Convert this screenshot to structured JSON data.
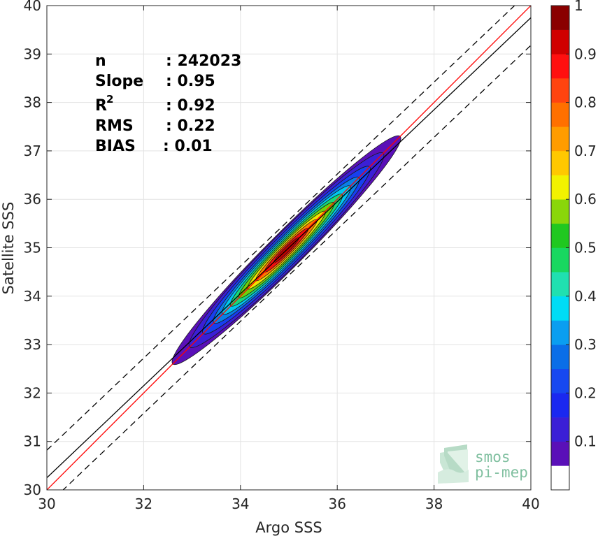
{
  "chart_data": {
    "type": "heatmap",
    "subtype": "density-contour",
    "xlabel": "Argo SSS",
    "ylabel": "Satellite SSS",
    "xlim": [
      30,
      40
    ],
    "ylim": [
      30,
      40
    ],
    "x_ticks": [
      30,
      32,
      34,
      36,
      38,
      40
    ],
    "y_ticks": [
      30,
      31,
      32,
      33,
      34,
      35,
      36,
      37,
      38,
      39,
      40
    ],
    "grid": true,
    "stats": [
      {
        "label": "n",
        "value": ": 242023"
      },
      {
        "label": "Slope",
        "value": ": 0.95"
      },
      {
        "label": "R",
        "sup": "2",
        "value": ": 0.92"
      },
      {
        "label": "RMS",
        "value": ": 0.22"
      },
      {
        "label": "BIAS",
        "value": ": 0.01"
      }
    ],
    "density_center": {
      "x": 34.95,
      "y": 34.95
    },
    "contours": [
      {
        "level": 0.05,
        "half_length": 2.35,
        "half_width": 0.36,
        "color": "#5a10b8"
      },
      {
        "level": 0.1,
        "half_length": 2.0,
        "half_width": 0.34,
        "color": "#3b1fd6"
      },
      {
        "level": 0.2,
        "half_length": 1.72,
        "half_width": 0.3,
        "color": "#1740f0"
      },
      {
        "level": 0.3,
        "half_length": 1.5,
        "half_width": 0.26,
        "color": "#0a7fe8"
      },
      {
        "level": 0.4,
        "half_length": 1.32,
        "half_width": 0.23,
        "color": "#00c8f0"
      },
      {
        "level": 0.5,
        "half_length": 1.15,
        "half_width": 0.2,
        "color": "#18d878"
      },
      {
        "level": 0.6,
        "half_length": 0.98,
        "half_width": 0.17,
        "color": "#6ed20a"
      },
      {
        "level": 0.7,
        "half_length": 0.8,
        "half_width": 0.14,
        "color": "#f2e400"
      },
      {
        "level": 0.8,
        "half_length": 0.63,
        "half_width": 0.11,
        "color": "#ff7800"
      },
      {
        "level": 0.9,
        "half_length": 0.45,
        "half_width": 0.08,
        "color": "#f21010"
      },
      {
        "level": 0.95,
        "half_length": 0.26,
        "half_width": 0.05,
        "color": "#c00000"
      }
    ],
    "lines": [
      {
        "name": "identity",
        "slope": 1.0,
        "intercept": 0.0,
        "color": "#ff0000",
        "dash": "solid"
      },
      {
        "name": "regression",
        "slope": 0.95,
        "intercept": 1.75,
        "color": "#000000",
        "dash": "solid"
      },
      {
        "name": "regression-upper",
        "slope": 0.95,
        "intercept": 2.32,
        "color": "#000000",
        "dash": "dashed"
      },
      {
        "name": "regression-lower",
        "slope": 0.95,
        "intercept": 1.18,
        "color": "#000000",
        "dash": "dashed"
      }
    ],
    "colorbar": {
      "tick_labels": [
        "0.1",
        "0.2",
        "0.3",
        "0.4",
        "0.5",
        "0.6",
        "0.7",
        "0.8",
        "0.9",
        "1"
      ],
      "tick_values": [
        0.1,
        0.2,
        0.3,
        0.4,
        0.5,
        0.6,
        0.7,
        0.8,
        0.9,
        1.0
      ],
      "bins": [
        {
          "from": 0.0,
          "to": 0.05,
          "color": "#ffffff"
        },
        {
          "from": 0.05,
          "to": 0.1,
          "color": "#5a10b8"
        },
        {
          "from": 0.1,
          "to": 0.15,
          "color": "#3b1fd6"
        },
        {
          "from": 0.15,
          "to": 0.2,
          "color": "#1a28f0"
        },
        {
          "from": 0.2,
          "to": 0.25,
          "color": "#1748f0"
        },
        {
          "from": 0.25,
          "to": 0.3,
          "color": "#0a6ee8"
        },
        {
          "from": 0.3,
          "to": 0.35,
          "color": "#0a9ef0"
        },
        {
          "from": 0.35,
          "to": 0.4,
          "color": "#00dcf5"
        },
        {
          "from": 0.4,
          "to": 0.45,
          "color": "#20e0b0"
        },
        {
          "from": 0.45,
          "to": 0.5,
          "color": "#18d860"
        },
        {
          "from": 0.5,
          "to": 0.55,
          "color": "#20c820"
        },
        {
          "from": 0.55,
          "to": 0.6,
          "color": "#8ad60a"
        },
        {
          "from": 0.6,
          "to": 0.65,
          "color": "#f2f200"
        },
        {
          "from": 0.65,
          "to": 0.7,
          "color": "#ffc800"
        },
        {
          "from": 0.7,
          "to": 0.75,
          "color": "#ff9c00"
        },
        {
          "from": 0.75,
          "to": 0.8,
          "color": "#ff7000"
        },
        {
          "from": 0.8,
          "to": 0.85,
          "color": "#ff4410"
        },
        {
          "from": 0.85,
          "to": 0.9,
          "color": "#ff1010"
        },
        {
          "from": 0.9,
          "to": 0.95,
          "color": "#d00000"
        },
        {
          "from": 0.95,
          "to": 1.0,
          "color": "#8a0000"
        }
      ]
    }
  },
  "logo": {
    "line1": "smos",
    "line2": "pi-mep",
    "color": "#7fbf9f"
  }
}
